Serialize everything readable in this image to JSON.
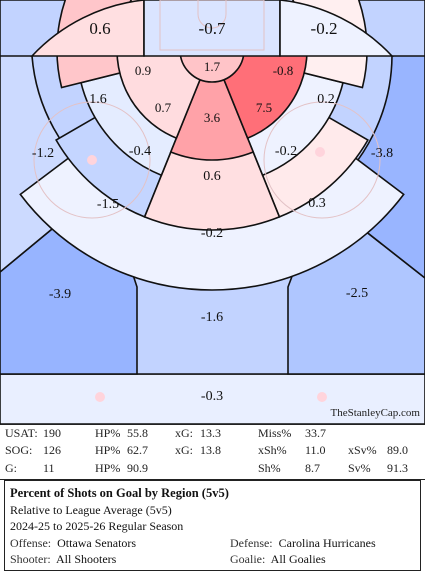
{
  "chart_data": {
    "type": "heatmap",
    "title": "Percent of Shots on Goal by Region (5v5)",
    "subtitle": "Relative to League Average (5v5)",
    "regions": [
      {
        "name": "top-left",
        "value": 0.6
      },
      {
        "name": "top-center",
        "value": -0.7
      },
      {
        "name": "top-right",
        "value": -0.2
      },
      {
        "name": "crease",
        "value": 1.7
      },
      {
        "name": "inner-left",
        "value": 0.9
      },
      {
        "name": "inner-right",
        "value": -0.8
      },
      {
        "name": "slot-center",
        "value": 3.6
      },
      {
        "name": "slot-left",
        "value": 0.7
      },
      {
        "name": "slot-right",
        "value": 7.5
      },
      {
        "name": "circle-left",
        "value": 1.6
      },
      {
        "name": "circle-right",
        "value": 0.2
      },
      {
        "name": "mid-left",
        "value": -0.4
      },
      {
        "name": "mid-right",
        "value": -0.2
      },
      {
        "name": "outer-left",
        "value": -1.2
      },
      {
        "name": "outer-right",
        "value": -3.8
      },
      {
        "name": "high-slot",
        "value": 0.6
      },
      {
        "name": "low-left",
        "value": -1.5
      },
      {
        "name": "low-right",
        "value": 0.3
      },
      {
        "name": "high-center",
        "value": -0.2
      },
      {
        "name": "point-left",
        "value": -3.9
      },
      {
        "name": "point-right",
        "value": -2.5
      },
      {
        "name": "point-center",
        "value": -1.6
      },
      {
        "name": "blue-line",
        "value": -0.3
      }
    ]
  },
  "credit": "TheStanleyCap.com",
  "stats": {
    "rows": [
      [
        {
          "label": "USAT:",
          "value": "190"
        },
        {
          "label": "HP%",
          "value": "55.8"
        },
        {
          "label": "xG:",
          "value": "13.3"
        },
        {
          "label": "Miss%",
          "value": "33.7"
        },
        {
          "label": "",
          "value": ""
        }
      ],
      [
        {
          "label": "SOG:",
          "value": "126"
        },
        {
          "label": "HP%",
          "value": "62.7"
        },
        {
          "label": "xG:",
          "value": "13.8"
        },
        {
          "label": "xSh%",
          "value": "11.0"
        },
        {
          "label": "xSv%",
          "value": "89.0"
        }
      ],
      [
        {
          "label": "G:",
          "value": "11"
        },
        {
          "label": "HP%",
          "value": "90.9"
        },
        {
          "label": "",
          "value": ""
        },
        {
          "label": "Sh%",
          "value": "8.7"
        },
        {
          "label": "Sv%",
          "value": "91.3"
        }
      ]
    ]
  },
  "info": {
    "title": "Percent of Shots on Goal by Region (5v5)",
    "relative": "Relative to League Average (5v5)",
    "seasons": "2024-25 to 2025-26 Regular Season",
    "offense_label": "Offense:",
    "offense": "Ottawa Senators",
    "defense_label": "Defense:",
    "defense": "Carolina Hurricanes",
    "shooter_label": "Shooter:",
    "shooter": "All Shooters",
    "goalie_label": "Goalie:",
    "goalie": "All Goalies"
  }
}
